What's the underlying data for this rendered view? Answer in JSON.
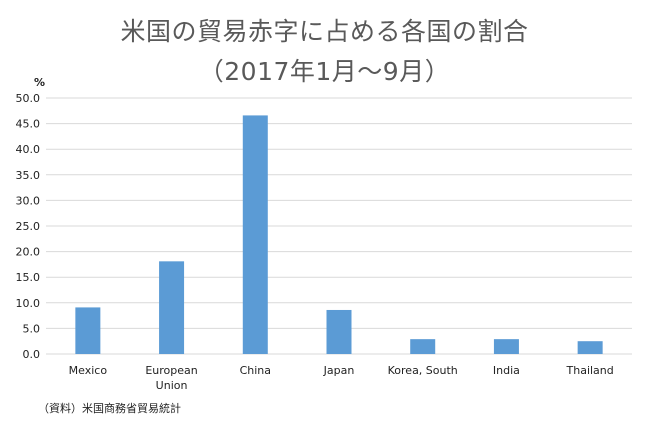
{
  "chart_data": {
    "type": "bar",
    "title": "米国の貿易赤字に占める各国の割合",
    "subtitle": "（2017年1月～9月）",
    "ylabel": "%",
    "xlabel": "",
    "ylim": [
      0,
      50
    ],
    "y_ticks": [
      "0.0",
      "5.0",
      "10.0",
      "15.0",
      "20.0",
      "25.0",
      "30.0",
      "35.0",
      "40.0",
      "45.0",
      "50.0"
    ],
    "categories": [
      "Mexico",
      "European\nUnion",
      "China",
      "Japan",
      "Korea, South",
      "India",
      "Thailand"
    ],
    "values": [
      9.1,
      18.1,
      46.6,
      8.6,
      2.9,
      2.9,
      2.5
    ],
    "grid": true,
    "legend": "none",
    "bar_color": "#5b9bd5",
    "gridline_color": "#d9d9d9",
    "source": "（資料）米国商務省貿易統計"
  }
}
